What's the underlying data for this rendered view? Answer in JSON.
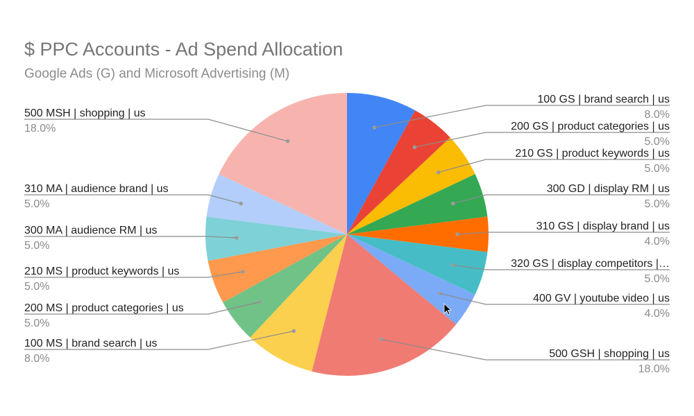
{
  "chart_data": {
    "type": "pie",
    "title": "$ PPC Accounts - Ad Spend Allocation",
    "subtitle": "Google Ads (G) and Microsoft Advertising (M)",
    "legend": "labels-with-leader-lines",
    "slices": [
      {
        "label": "100 GS | brand search | us",
        "value": 8.0,
        "pct_label": "8.0%",
        "color": "#4285f4",
        "side": "right"
      },
      {
        "label": "200 GS | product categories | us",
        "value": 5.0,
        "pct_label": "5.0%",
        "color": "#ea4335",
        "side": "right"
      },
      {
        "label": "210 GS | product keywords | us",
        "value": 5.0,
        "pct_label": "5.0%",
        "color": "#fbbc04",
        "side": "right"
      },
      {
        "label": "300 GD | display RM | us",
        "value": 5.0,
        "pct_label": "5.0%",
        "color": "#34a853",
        "side": "right"
      },
      {
        "label": "310 GS | display brand | us",
        "value": 4.0,
        "pct_label": "4.0%",
        "color": "#ff6d01",
        "side": "right"
      },
      {
        "label": "320 GS | display competitors |…",
        "value": 5.0,
        "pct_label": "5.0%",
        "color": "#46bdc6",
        "side": "right"
      },
      {
        "label": "400 GV | youtube video | us",
        "value": 4.0,
        "pct_label": "4.0%",
        "color": "#7baaf7",
        "side": "right"
      },
      {
        "label": "500 GSH | shopping | us",
        "value": 18.0,
        "pct_label": "18.0%",
        "color": "#f07b72",
        "side": "right"
      },
      {
        "label": "100 MS | brand search | us",
        "value": 8.0,
        "pct_label": "8.0%",
        "color": "#fcd04f",
        "side": "left"
      },
      {
        "label": "200 MS | product categories | us",
        "value": 5.0,
        "pct_label": "5.0%",
        "color": "#71c287",
        "side": "left"
      },
      {
        "label": "210 MS | product keywords | us",
        "value": 5.0,
        "pct_label": "5.0%",
        "color": "#ff994d",
        "side": "left"
      },
      {
        "label": "300 MA | audience RM | us",
        "value": 5.0,
        "pct_label": "5.0%",
        "color": "#7ed1d7",
        "side": "left"
      },
      {
        "label": "310 MA | audience brand | us",
        "value": 5.0,
        "pct_label": "5.0%",
        "color": "#b3cefb",
        "side": "left"
      },
      {
        "label": "500 MSH | shopping | us",
        "value": 18.0,
        "pct_label": "18.0%",
        "color": "#f7b4ae",
        "side": "left"
      }
    ]
  }
}
